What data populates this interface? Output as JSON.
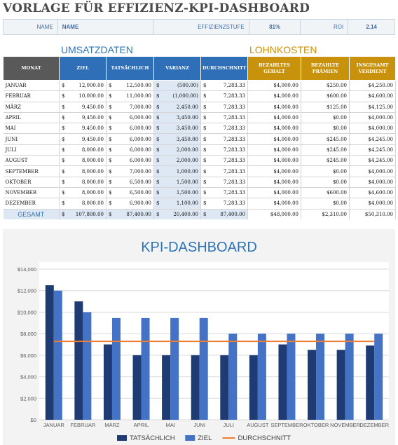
{
  "title": "VORLAGE FÜR EFFIZIENZ-KPI-DASHBOARD",
  "kpi": {
    "name_label": "NAME",
    "name_value": "NAME",
    "efficiency_label": "EFFIZIENZSTUFE",
    "efficiency_value": "81%",
    "roi_label": "ROI",
    "roi_value": "2.14"
  },
  "sections": {
    "umsatz": "UMSATZDATEN",
    "lohn": "LOHNKOSTEN"
  },
  "table": {
    "headers": [
      "MONAT",
      "ZIEL",
      "TATSÄCHLICH",
      "VARIANZ",
      "DURCHSCHNITT",
      "BEZAHLTES GEHALT",
      "BEZAHLTE PRÄMIEN",
      "INSGESAMT VERDIENT"
    ],
    "currency": "$",
    "rows": [
      {
        "month": "JANUAR",
        "ziel": "12,000.00",
        "tats": "12,500.00",
        "var": "(500.00)",
        "avg": "7,283.33",
        "gehalt": "$4,000.00",
        "praemie": "$250.00",
        "gesamt": "$4,250.00"
      },
      {
        "month": "FEBRUAR",
        "ziel": "10,000.00",
        "tats": "11,000.00",
        "var": "(1,000.00)",
        "avg": "7,283.33",
        "gehalt": "$4,000.00",
        "praemie": "$600.00",
        "gesamt": "$4,600.00"
      },
      {
        "month": "MÄRZ",
        "ziel": "9,450.00",
        "tats": "7,000.00",
        "var": "2,450.00",
        "avg": "7,283.33",
        "gehalt": "$4,000.00",
        "praemie": "$125.00",
        "gesamt": "$4,125.00"
      },
      {
        "month": "APRIL",
        "ziel": "9,450.00",
        "tats": "6,000.00",
        "var": "3,450.00",
        "avg": "7,283.33",
        "gehalt": "$4,000.00",
        "praemie": "$0.00",
        "gesamt": "$4,000.00"
      },
      {
        "month": "MAI",
        "ziel": "9,450.00",
        "tats": "6,000.00",
        "var": "3,450.00",
        "avg": "7,283.33",
        "gehalt": "$4,000.00",
        "praemie": "$0.00",
        "gesamt": "$4,000.00"
      },
      {
        "month": "JUNI",
        "ziel": "9,450.00",
        "tats": "6,000.00",
        "var": "3,450.00",
        "avg": "7,283.33",
        "gehalt": "$4,000.00",
        "praemie": "$245.00",
        "gesamt": "$4,245.00"
      },
      {
        "month": "JULI",
        "ziel": "8,000.00",
        "tats": "6,000.00",
        "var": "2,000.00",
        "avg": "7,283.33",
        "gehalt": "$4,000.00",
        "praemie": "$245.00",
        "gesamt": "$4,245.00"
      },
      {
        "month": "AUGUST",
        "ziel": "8,000.00",
        "tats": "6,000.00",
        "var": "2,000.00",
        "avg": "7,283.33",
        "gehalt": "$4,000.00",
        "praemie": "$245.00",
        "gesamt": "$4,245.00"
      },
      {
        "month": "SEPTEMBER",
        "ziel": "8,000.00",
        "tats": "7,000.00",
        "var": "1,000.00",
        "avg": "7,283.33",
        "gehalt": "$4,000.00",
        "praemie": "$0.00",
        "gesamt": "$4,000.00"
      },
      {
        "month": "OKTOBER",
        "ziel": "8,000.00",
        "tats": "6,500.00",
        "var": "1,500.00",
        "avg": "7,283.33",
        "gehalt": "$4,000.00",
        "praemie": "$0.00",
        "gesamt": "$4,000.00"
      },
      {
        "month": "NOVEMBER",
        "ziel": "8,000.00",
        "tats": "6,500.00",
        "var": "1,500.00",
        "avg": "7,283.33",
        "gehalt": "$4,000.00",
        "praemie": "$600.00",
        "gesamt": "$4,600.00"
      },
      {
        "month": "DEZEMBER",
        "ziel": "8,000.00",
        "tats": "6,900.00",
        "var": "1,100.00",
        "avg": "7,283.33",
        "gehalt": "$4,000.00",
        "praemie": "$0.00",
        "gesamt": "$4,000.00"
      }
    ],
    "total": {
      "label": "GESAMT",
      "ziel": "107,800.00",
      "tats": "87,400.00",
      "var": "20,400.00",
      "avg": "87,400.00",
      "gehalt": "$48,000.00",
      "praemie": "$2,310.00",
      "gesamt": "$50,310.00"
    }
  },
  "chart_data": {
    "type": "bar",
    "title": "KPI-DASHBOARD",
    "categories": [
      "JANUAR",
      "FEBRUAR",
      "MÄRZ",
      "APRIL",
      "MAI",
      "JUNI",
      "JULI",
      "AUGUST",
      "SEPTEMBER",
      "OKTOBER",
      "NOVEMBER",
      "DEZEMBER"
    ],
    "series": [
      {
        "name": "TATSÄCHLICH",
        "type": "bar",
        "color": "#1f3b73",
        "values": [
          12500,
          11000,
          7000,
          6000,
          6000,
          6000,
          6000,
          6000,
          7000,
          6500,
          6500,
          6900
        ]
      },
      {
        "name": "ZIEL",
        "type": "bar",
        "color": "#4472c4",
        "values": [
          12000,
          10000,
          9450,
          9450,
          9450,
          9450,
          8000,
          8000,
          8000,
          8000,
          8000,
          8000
        ]
      },
      {
        "name": "DURCHSCHNITT",
        "type": "line",
        "color": "#ed7d31",
        "values": [
          7283.33,
          7283.33,
          7283.33,
          7283.33,
          7283.33,
          7283.33,
          7283.33,
          7283.33,
          7283.33,
          7283.33,
          7283.33,
          7283.33
        ]
      }
    ],
    "ylim": [
      0,
      14000
    ],
    "yticks": [
      "$0",
      "$2,000",
      "$4,000",
      "$6,000",
      "$8,000",
      "$10,000",
      "$12,000",
      "$14,000"
    ],
    "grid": true,
    "legend": "bottom"
  }
}
